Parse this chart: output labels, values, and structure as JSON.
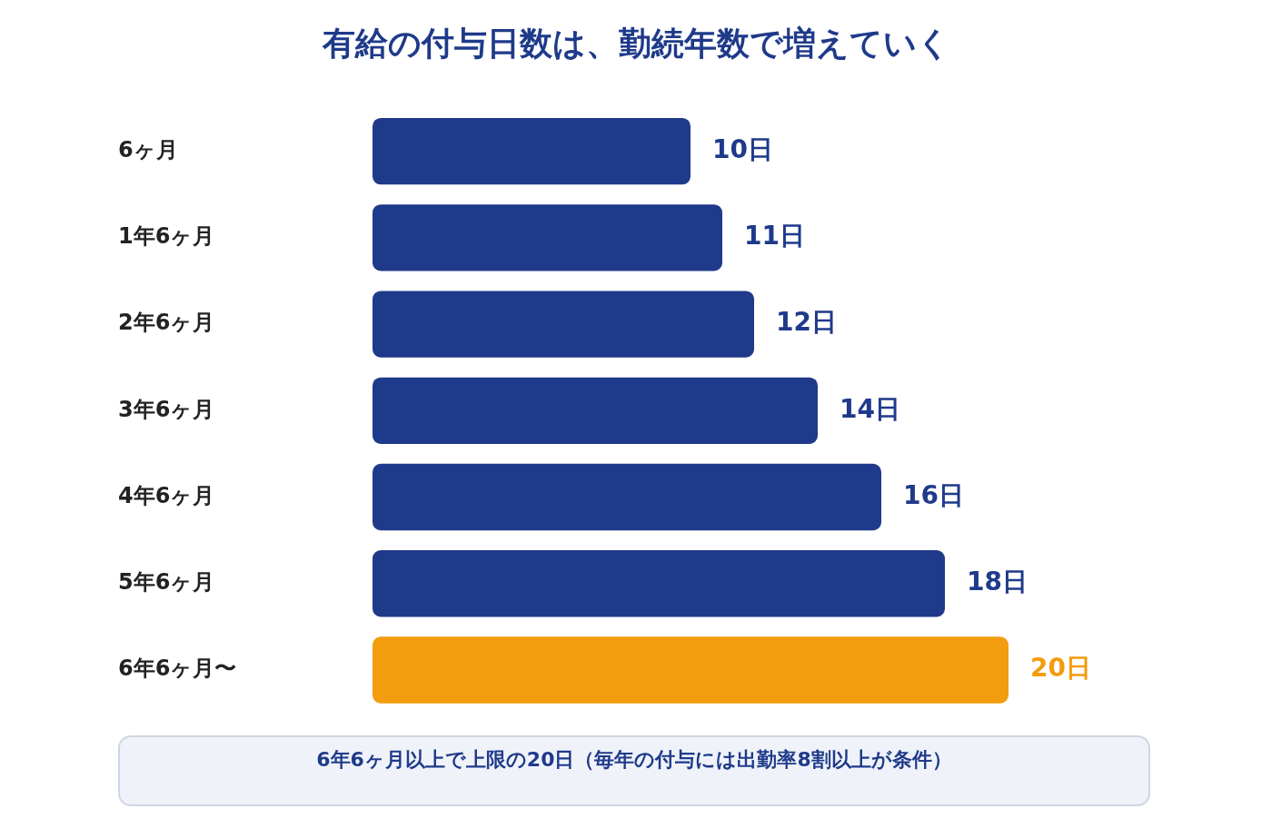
{
  "chart_data": {
    "type": "bar",
    "orientation": "horizontal",
    "title": "有給の付与日数は、勤続年数で増えていく",
    "categories": [
      "6ヶ月",
      "1年6ヶ月",
      "2年6ヶ月",
      "3年6ヶ月",
      "4年6ヶ月",
      "5年6ヶ月",
      "6年6ヶ月〜"
    ],
    "values": [
      10,
      11,
      12,
      14,
      16,
      18,
      20
    ],
    "colors": [
      "#1f3a8a",
      "#1f3a8a",
      "#1f3a8a",
      "#1f3a8a",
      "#1f3a8a",
      "#1f3a8a",
      "#f39c0e"
    ],
    "value_labels": [
      "10日",
      "11日",
      "12日",
      "14日",
      "16日",
      "18日",
      "20日"
    ],
    "annotations": [
      "6年6ヶ月以上で上限の20日（毎年の付与には出勤率8割以上が条件）"
    ],
    "legend": false
  }
}
